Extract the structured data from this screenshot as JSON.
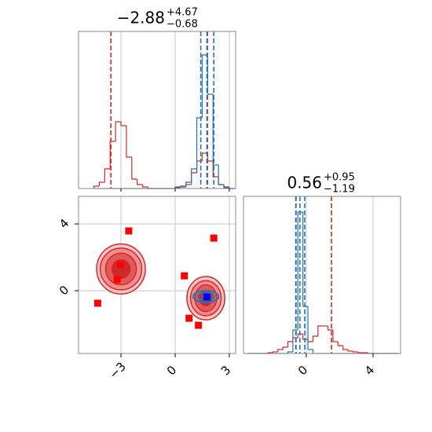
{
  "chart_data": {
    "type": "corner",
    "grid": true,
    "params": [
      {
        "title_value": "−2.88",
        "title_upper": "+4.67",
        "title_lower": "−0.68",
        "lim": [
          -5.35,
          3.35
        ],
        "ticks": [
          {
            "value": -3,
            "label": "−3"
          },
          0,
          3
        ]
      },
      {
        "title_value": "0.56",
        "title_upper": "+0.95",
        "title_lower": "−1.19",
        "lim": [
          -3.76,
          5.65
        ],
        "ticks": [
          0,
          4
        ]
      }
    ],
    "histograms": [
      {
        "param": 0,
        "ylim": [
          0,
          200
        ],
        "bins": [
          -4.5,
          -4.2,
          -3.9,
          -3.6,
          -3.3,
          -3.0,
          -2.7,
          -2.4,
          -2.1,
          -1.8,
          -1.5,
          -1.2,
          -0.9,
          -0.6,
          -0.3,
          0.0,
          0.3,
          0.6,
          0.9,
          1.2,
          1.5,
          1.8,
          2.1,
          2.4,
          2.7,
          3.0,
          3.3
        ],
        "series": [
          {
            "color": "#d62728",
            "values": [
              3,
              8,
              25,
              60,
              85,
              80,
              40,
              12,
              5,
              2,
              0,
              0,
              0,
              0,
              0,
              2,
              3,
              8,
              20,
              35,
              45,
              35,
              15,
              5,
              2,
              0
            ],
            "quantiles": [
              -3.56,
              1.79
            ]
          },
          {
            "color": "#1f77b4",
            "values": [
              0,
              0,
              0,
              0,
              0,
              0,
              0,
              0,
              0,
              0,
              0,
              0,
              0,
              0,
              0,
              1,
              2,
              5,
              25,
              90,
              170,
              120,
              30,
              5,
              1,
              0
            ],
            "quantiles": [
              1.42,
              1.76,
              2.14
            ]
          }
        ]
      },
      {
        "param": 1,
        "ylim": [
          0,
          200
        ],
        "bins": [
          -3.5,
          -3.2,
          -2.9,
          -2.6,
          -2.3,
          -2.0,
          -1.7,
          -1.4,
          -1.1,
          -0.8,
          -0.5,
          -0.2,
          0.1,
          0.4,
          0.7,
          1.0,
          1.3,
          1.6,
          1.9,
          2.2,
          2.5,
          2.8,
          3.1,
          3.4,
          3.7,
          4.0,
          4.3,
          4.6,
          4.9,
          5.2,
          5.5
        ],
        "series": [
          {
            "color": "#d62728",
            "values": [
              0,
              0,
              0,
              0,
              1,
              2,
              5,
              8,
              15,
              20,
              25,
              18,
              15,
              22,
              35,
              35,
              30,
              15,
              10,
              5,
              3,
              2,
              1,
              1,
              0,
              0,
              0,
              0,
              0,
              0
            ],
            "quantiles": [
              -0.63,
              1.51
            ]
          },
          {
            "color": "#1f77b4",
            "values": [
              0,
              0,
              0,
              0,
              0,
              0,
              0,
              0,
              2,
              30,
              180,
              60,
              5,
              0,
              0,
              0,
              0,
              0,
              0,
              0,
              0,
              0,
              0,
              0,
              0,
              0,
              0,
              0,
              0,
              0
            ],
            "quantiles": [
              -0.61,
              -0.38,
              -0.09
            ]
          }
        ]
      }
    ],
    "contours": [
      {
        "color": "#d62728",
        "cx": -3.0,
        "cy": 1.3,
        "rx": [
          1.35,
          1.15,
          0.85,
          0.5
        ],
        "ry": [
          1.5,
          1.25,
          0.95,
          0.55
        ]
      },
      {
        "color": "#d62728",
        "cx": 1.7,
        "cy": -0.45,
        "rx": [
          1.05,
          0.85,
          0.6,
          0.35
        ],
        "ry": [
          1.3,
          1.05,
          0.8,
          0.45
        ]
      },
      {
        "color": "#1f77b4",
        "cx": 1.7,
        "cy": -0.35,
        "rx": [
          0.7,
          0.45
        ],
        "ry": [
          0.35,
          0.22
        ]
      }
    ],
    "scatter": {
      "color": "#ff0000",
      "x": [
        -2.57,
        -3.04,
        -3.21,
        -4.29,
        2.14,
        0.51,
        0.77,
        1.29
      ],
      "y": [
        3.58,
        1.55,
        0.66,
        -0.75,
        3.15,
        0.89,
        -1.65,
        -2.07
      ]
    },
    "truth": {
      "color": "#0000ff",
      "x": 1.76,
      "y": -0.38
    }
  }
}
